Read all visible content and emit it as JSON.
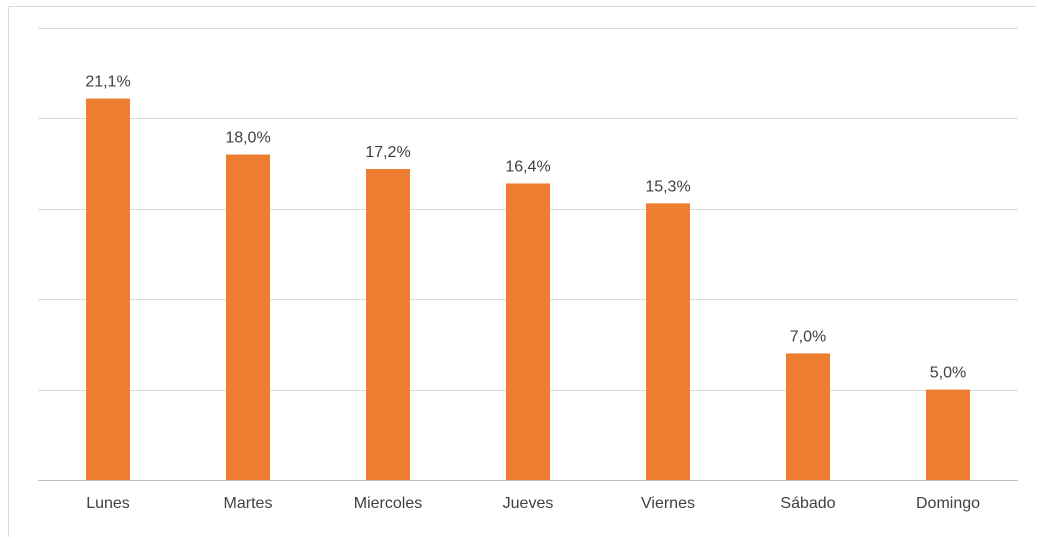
{
  "chart_data": {
    "type": "bar",
    "categories": [
      "Lunes",
      "Martes",
      "Miercoles",
      "Jueves",
      "Viernes",
      "Sábado",
      "Domingo"
    ],
    "values": [
      21.1,
      18.0,
      17.2,
      16.4,
      15.3,
      7.0,
      5.0
    ],
    "data_labels": [
      "21,1%",
      "18,0%",
      "17,2%",
      "16,4%",
      "15,3%",
      "7,0%",
      "5,0%"
    ],
    "title": "",
    "xlabel": "",
    "ylabel": "",
    "ylim": [
      0,
      25
    ],
    "y_tick_step": 5,
    "y_tick_labels_visible": false,
    "grid": true,
    "legend": "none",
    "bar_color": "#ed7d31"
  }
}
